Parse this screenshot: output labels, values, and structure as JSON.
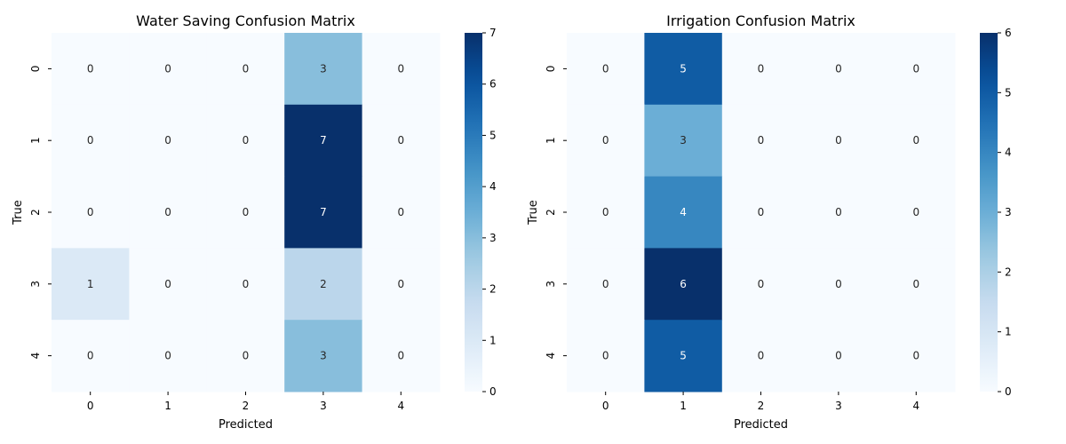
{
  "chart_data": [
    {
      "type": "heatmap",
      "title": "Water Saving Confusion Matrix",
      "xlabel": "Predicted",
      "ylabel": "True",
      "x_categories": [
        "0",
        "1",
        "2",
        "3",
        "4"
      ],
      "y_categories": [
        "0",
        "1",
        "2",
        "3",
        "4"
      ],
      "values": [
        [
          0,
          0,
          0,
          3,
          0
        ],
        [
          0,
          0,
          0,
          7,
          0
        ],
        [
          0,
          0,
          0,
          7,
          0
        ],
        [
          1,
          0,
          0,
          2,
          0
        ],
        [
          0,
          0,
          0,
          3,
          0
        ]
      ],
      "colormap": "Blues",
      "colorbar": {
        "min": 0,
        "max": 7,
        "ticks": [
          0,
          1,
          2,
          3,
          4,
          5,
          6,
          7
        ]
      }
    },
    {
      "type": "heatmap",
      "title": "Irrigation Confusion Matrix",
      "xlabel": "Predicted",
      "ylabel": "True",
      "x_categories": [
        "0",
        "1",
        "2",
        "3",
        "4"
      ],
      "y_categories": [
        "0",
        "1",
        "2",
        "3",
        "4"
      ],
      "values": [
        [
          0,
          5,
          0,
          0,
          0
        ],
        [
          0,
          3,
          0,
          0,
          0
        ],
        [
          0,
          4,
          0,
          0,
          0
        ],
        [
          0,
          6,
          0,
          0,
          0
        ],
        [
          0,
          5,
          0,
          0,
          0
        ]
      ],
      "colormap": "Blues",
      "colorbar": {
        "min": 0,
        "max": 6,
        "ticks": [
          0,
          1,
          2,
          3,
          4,
          5,
          6
        ]
      }
    }
  ]
}
